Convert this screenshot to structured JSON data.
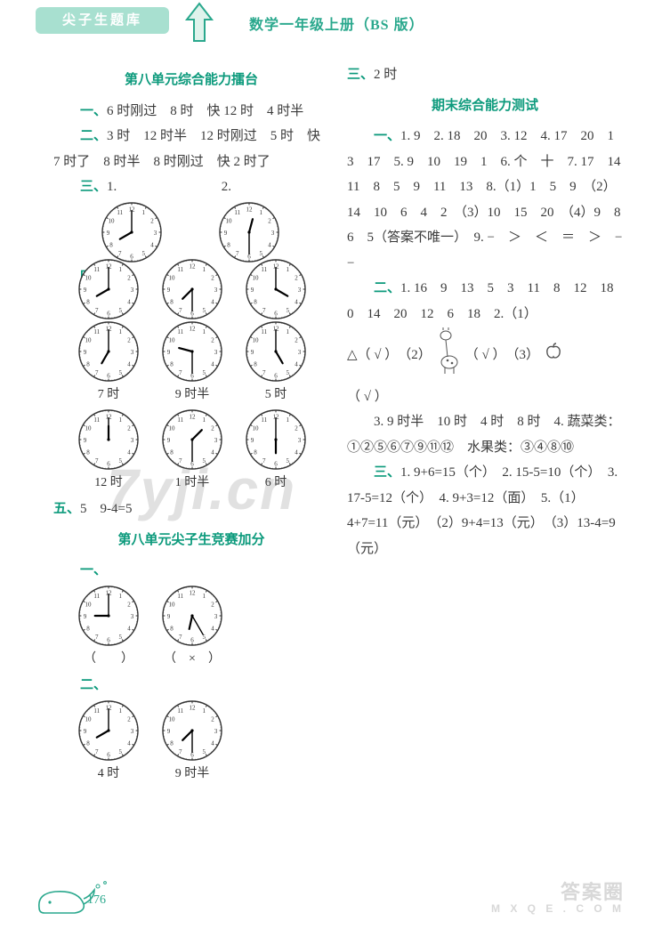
{
  "header": {
    "tab_label": "尖子生题库",
    "book_label": "数学一年级上册（BS 版）"
  },
  "left": {
    "unit8_head": "第八单元综合能力擂台",
    "l1_num": "一、",
    "l1_text": "6 时刚过　8 时　快 12 时　4 时半",
    "l2_num": "二、",
    "l2_text": "3 时　12 时半　12 时刚过　5 时　快 7 时了　8 时半　8 时刚过　快 2 时了",
    "l3_num": "三、",
    "l3_label1": "1.",
    "l3_label2": "2.",
    "l4_num": "四、",
    "row4a": [
      "7 时",
      "9 时半",
      "5 时"
    ],
    "row4b": [
      "12 时",
      "1 时半",
      "6 时"
    ],
    "l5_num": "五、",
    "l5_text": "5　9-4=5",
    "unit8b_head": "第八单元尖子生竞赛加分",
    "b1_num": "一、",
    "b1_labels": [
      "（　　）",
      "（　×　）"
    ],
    "b2_num": "二、",
    "b2_labels": [
      "4 时",
      "9 时半"
    ],
    "clocks": {
      "three_1": {
        "h": 8,
        "m": 0
      },
      "three_2": {
        "h": 12,
        "m": 30
      },
      "four_top": [
        {
          "h": 8,
          "m": 0
        },
        {
          "h": 7,
          "m": 30
        },
        {
          "h": 4,
          "m": 0
        }
      ],
      "four_a": [
        {
          "h": 7,
          "m": 0
        },
        {
          "h": 9,
          "m": 30
        },
        {
          "h": 5,
          "m": 0
        }
      ],
      "four_b": [
        {
          "h": 12,
          "m": 0
        },
        {
          "h": 1,
          "m": 30
        },
        {
          "h": 6,
          "m": 0
        }
      ],
      "b1": [
        {
          "h": 9,
          "m": 0
        },
        {
          "h": 6,
          "m": 25
        }
      ],
      "b2": [
        {
          "h": 8,
          "m": 0
        },
        {
          "h": 7,
          "m": 30
        }
      ]
    }
  },
  "right": {
    "r_three_num": "三、",
    "r_three_text": "2 时",
    "final_head": "期末综合能力测试",
    "r1_num": "一、",
    "r1_text": "1. 9　2. 18　20　3. 12　4. 17　20　1　3　17　5. 9　10　19　1　6. 个　十　7. 17　14　11　8　5　9　11　13　8.（1）1　5　9　（2）14　10　6　4　2　（3）10　15　20　（4）9　8　6　5（答案不唯一）　9. −　＞　＜　＝　＞　−　−",
    "r2_num": "二、",
    "r2_text_a": "1. 16　9　13　5　3　11　8　12　18　0　14　20　12　6　18　2.（1）",
    "r2_delta": "△（ √ ）　（2）",
    "r2_check2": "（ √ ）　（3）",
    "r2_check3": "（ √ ）",
    "r2_text_c": "3. 9 时半　10 时　4 时　8 时　4. 蔬菜类：①②⑤⑥⑦⑨⑪⑫　水果类：③④⑧⑩",
    "r3_num": "三、",
    "r3_text": "1. 9+6=15（个）　2. 15-5=10（个）　3. 17-5=12（个）　4. 9+3=12（面）　5.（1）4+7=11（元）　（2）9+4=13（元）　（3）13-4=9（元）"
  },
  "footer": {
    "page_num": "176",
    "brand_cn": "答案圈",
    "brand_en": "M X Q E . C O M"
  },
  "watermark": "7yji.cn",
  "style": {
    "accent": "#0c9a7c",
    "tab_bg": "#a8e0d0",
    "clock_size": 68
  }
}
